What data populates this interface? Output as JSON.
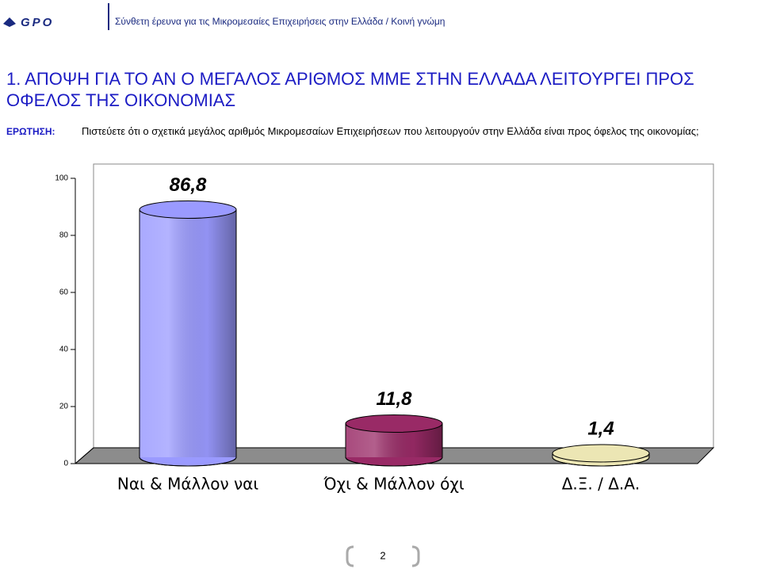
{
  "header": {
    "logo": "GPO",
    "subtitle": "Σύνθετη έρευνα για τις  Μικρομεσαίες Επιχειρήσεις στην Ελλάδα  / Κοινή γνώμη"
  },
  "chart_data": {
    "type": "cylinder",
    "title": "1.  ΑΠΟΨΗ ΓΙΑ ΤΟ ΑΝ Ο ΜΕΓΑΛΟΣ ΑΡΙΘΜΟΣ ΜΜΕ ΣΤΗΝ ΕΛΛΑΔΑ ΛΕΙΤΟΥΡΓΕΙ ΠΡΟΣ ΟΦΕΛΟΣ ΤΗΣ ΟΙΚΟΝΟΜΙΑΣ",
    "question_label": "ΕΡΩΤΗΣΗ:",
    "question": "Πιστεύετε ότι ο σχετικά μεγάλος αριθμός Μικρομεσαίων Επιχειρήσεων που λειτουργούν στην Ελλάδα είναι προς όφελος της οικονομίας;",
    "categories": [
      "Ναι & Μάλλον ναι",
      "Όχι & Μάλλον όχι",
      "Δ.Ξ. / Δ.Α."
    ],
    "values": [
      86.8,
      11.8,
      1.4
    ],
    "value_labels": [
      "86,8",
      "11,8",
      "1,4"
    ],
    "colors": [
      "#9a9aff",
      "#992a66",
      "#ece6b4"
    ],
    "ylim": [
      0,
      100
    ],
    "yticks": [
      0,
      20,
      40,
      60,
      80,
      100
    ]
  },
  "footer": {
    "page": "2"
  }
}
